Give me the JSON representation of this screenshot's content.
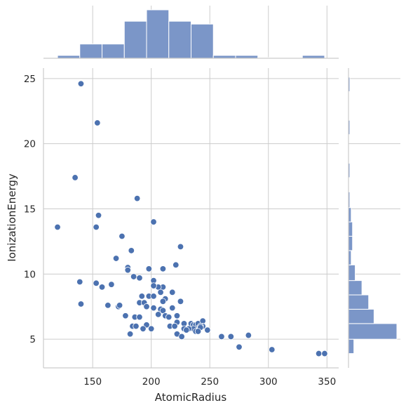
{
  "chart_data": {
    "type": "scatter",
    "title": "",
    "xlabel": "AtomicRadius",
    "ylabel": "IonizationEnergy",
    "xlim": [
      108,
      360
    ],
    "ylim": [
      2.8,
      25.8
    ],
    "xticks": [
      "150",
      "200",
      "250",
      "300",
      "350"
    ],
    "yticks": [
      "5",
      "10",
      "15",
      "20",
      "25"
    ],
    "grid": true,
    "color": "#4c72b0",
    "hist_color": "#7b96c8",
    "points": [
      [
        140,
        24.6
      ],
      [
        154,
        21.6
      ],
      [
        135,
        17.4
      ],
      [
        155,
        14.5
      ],
      [
        120,
        13.6
      ],
      [
        153,
        13.6
      ],
      [
        188,
        15.8
      ],
      [
        202,
        14.0
      ],
      [
        175,
        12.9
      ],
      [
        183,
        11.8
      ],
      [
        225,
        12.1
      ],
      [
        170,
        11.2
      ],
      [
        221,
        10.7
      ],
      [
        180,
        10.5
      ],
      [
        180,
        10.3
      ],
      [
        198,
        10.4
      ],
      [
        210,
        10.4
      ],
      [
        185,
        9.8
      ],
      [
        190,
        9.7
      ],
      [
        202,
        9.5
      ],
      [
        210,
        9.0
      ],
      [
        206,
        9.0
      ],
      [
        202,
        9.1
      ],
      [
        139,
        9.4
      ],
      [
        153,
        9.3
      ],
      [
        158,
        9.0
      ],
      [
        166,
        9.2
      ],
      [
        218,
        8.6
      ],
      [
        208,
        8.6
      ],
      [
        198,
        8.3
      ],
      [
        192,
        8.3
      ],
      [
        202,
        8.3
      ],
      [
        212,
        8.1
      ],
      [
        210,
        7.9
      ],
      [
        225,
        7.9
      ],
      [
        190,
        7.8
      ],
      [
        194,
        7.8
      ],
      [
        140,
        7.7
      ],
      [
        163,
        7.6
      ],
      [
        172,
        7.5
      ],
      [
        173,
        7.6
      ],
      [
        196,
        7.5
      ],
      [
        202,
        7.4
      ],
      [
        208,
        7.3
      ],
      [
        210,
        7.2
      ],
      [
        218,
        7.4
      ],
      [
        222,
        6.8
      ],
      [
        178,
        6.8
      ],
      [
        186,
        6.7
      ],
      [
        190,
        6.7
      ],
      [
        206,
        6.9
      ],
      [
        212,
        6.8
      ],
      [
        215,
        6.7
      ],
      [
        196,
        6.1
      ],
      [
        222,
        6.3
      ],
      [
        228,
        6.2
      ],
      [
        234,
        6.2
      ],
      [
        236,
        6.1
      ],
      [
        238,
        6.1
      ],
      [
        240,
        6.2
      ],
      [
        244,
        6.4
      ],
      [
        244,
        6.0
      ],
      [
        242,
        6.0
      ],
      [
        242,
        5.9
      ],
      [
        236,
        5.8
      ],
      [
        232,
        5.8
      ],
      [
        228,
        5.8
      ],
      [
        230,
        5.7
      ],
      [
        238,
        5.6
      ],
      [
        240,
        5.6
      ],
      [
        248,
        5.7
      ],
      [
        184,
        6.0
      ],
      [
        187,
        6.0
      ],
      [
        193,
        5.8
      ],
      [
        200,
        5.8
      ],
      [
        216,
        6.0
      ],
      [
        220,
        6.0
      ],
      [
        222,
        5.4
      ],
      [
        226,
        5.2
      ],
      [
        182,
        5.4
      ],
      [
        260,
        5.2
      ],
      [
        268,
        5.2
      ],
      [
        283,
        5.3
      ],
      [
        275,
        4.4
      ],
      [
        303,
        4.2
      ],
      [
        343,
        3.9
      ],
      [
        348,
        3.9
      ]
    ],
    "x_histogram": {
      "bins": [
        [
          120,
          139
        ],
        [
          139,
          158
        ],
        [
          158,
          177
        ],
        [
          177,
          196
        ],
        [
          196,
          215
        ],
        [
          215,
          234
        ],
        [
          234,
          253
        ],
        [
          253,
          272
        ],
        [
          272,
          291
        ],
        [
          291,
          310
        ],
        [
          310,
          329
        ],
        [
          329,
          348
        ]
      ],
      "counts": [
        1,
        5,
        5,
        13,
        17,
        13,
        12,
        1,
        1,
        0.25,
        0,
        1
      ]
    },
    "y_histogram": {
      "bins": [
        [
          3.9,
          5.0
        ],
        [
          5.0,
          6.2
        ],
        [
          6.2,
          7.3
        ],
        [
          7.3,
          8.4
        ],
        [
          8.4,
          9.5
        ],
        [
          9.5,
          10.7
        ],
        [
          10.7,
          11.8
        ],
        [
          11.8,
          12.9
        ],
        [
          12.9,
          14.0
        ],
        [
          14.0,
          15.1
        ],
        [
          15.1,
          16.3
        ],
        [
          16.3,
          17.4
        ],
        [
          17.4,
          18.5
        ],
        [
          18.5,
          19.6
        ],
        [
          19.6,
          20.7
        ],
        [
          20.7,
          21.8
        ],
        [
          21.8,
          22.9
        ],
        [
          22.9,
          24.0
        ],
        [
          24.0,
          25.1
        ]
      ],
      "counts": [
        4,
        36,
        19,
        15,
        10,
        5,
        2,
        3,
        3,
        2,
        1,
        0,
        1,
        0,
        0,
        1,
        0,
        0,
        1
      ]
    }
  }
}
